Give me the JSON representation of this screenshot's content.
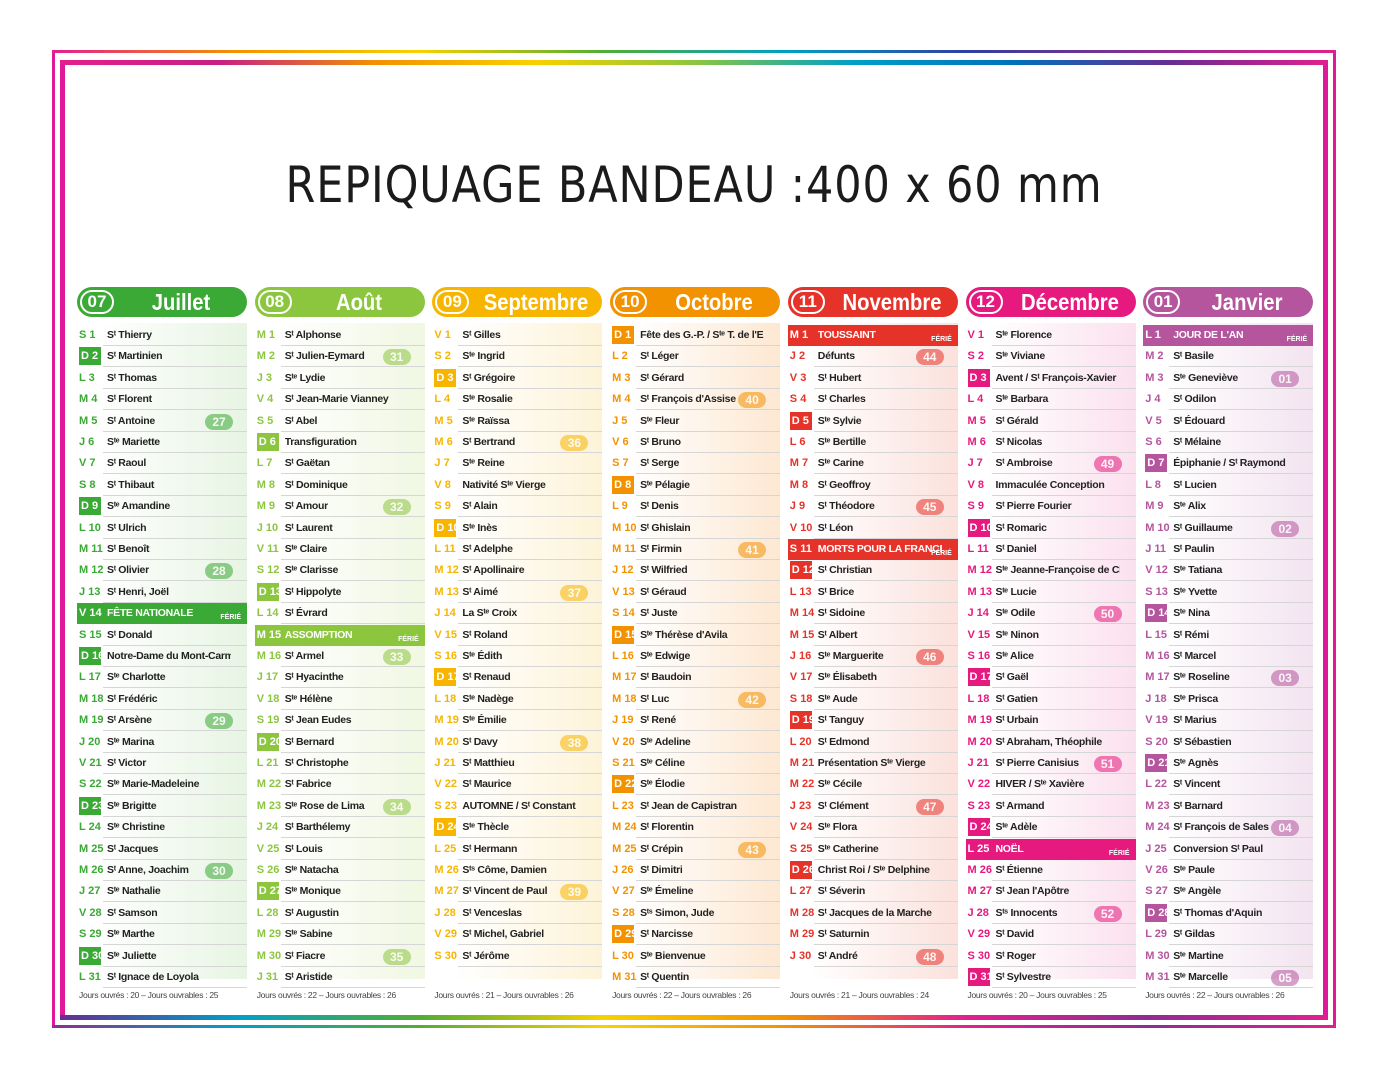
{
  "banner": "REPIQUAGE BANDEAU :400 x 60 mm",
  "holiday_tag": "FÉRIÉ",
  "months": [
    {
      "num": "07",
      "name": "Juillet",
      "color": "#3aa935",
      "bg": "#e7f4e3",
      "footer": "Jours ouvrés : 20 – Jours ouvrables : 25",
      "days": [
        [
          "S",
          "1",
          "Sᵗ Thierry"
        ],
        [
          "D",
          "2",
          "Sᵗ Martinien"
        ],
        [
          "L",
          "3",
          "Sᵗ Thomas"
        ],
        [
          "M",
          "4",
          "Sᵗ Florent"
        ],
        [
          "M",
          "5",
          "Sᵗ Antoine"
        ],
        [
          "J",
          "6",
          "Sᵗᵉ Mariette"
        ],
        [
          "V",
          "7",
          "Sᵗ Raoul"
        ],
        [
          "S",
          "8",
          "Sᵗ Thibaut"
        ],
        [
          "D",
          "9",
          "Sᵗᵉ Amandine"
        ],
        [
          "L",
          "10",
          "Sᵗ Ulrich"
        ],
        [
          "M",
          "11",
          "Sᵗ Benoît"
        ],
        [
          "M",
          "12",
          "Sᵗ Olivier"
        ],
        [
          "J",
          "13",
          "Sᵗ Henri, Joël"
        ],
        [
          "V",
          "14",
          "FÊTE NATIONALE"
        ],
        [
          "S",
          "15",
          "Sᵗ Donald"
        ],
        [
          "D",
          "16",
          "Notre-Dame du Mont-Carmel"
        ],
        [
          "L",
          "17",
          "Sᵗᵉ Charlotte"
        ],
        [
          "M",
          "18",
          "Sᵗ Frédéric"
        ],
        [
          "M",
          "19",
          "Sᵗ Arsène"
        ],
        [
          "J",
          "20",
          "Sᵗᵉ Marina"
        ],
        [
          "V",
          "21",
          "Sᵗ Victor"
        ],
        [
          "S",
          "22",
          "Sᵗᵉ Marie-Madeleine"
        ],
        [
          "D",
          "23",
          "Sᵗᵉ Brigitte"
        ],
        [
          "L",
          "24",
          "Sᵗᵉ Christine"
        ],
        [
          "M",
          "25",
          "Sᵗ Jacques"
        ],
        [
          "M",
          "26",
          "Sᵗ Anne, Joachim"
        ],
        [
          "J",
          "27",
          "Sᵗᵉ Nathalie"
        ],
        [
          "V",
          "28",
          "Sᵗ Samson"
        ],
        [
          "S",
          "29",
          "Sᵗᵉ Marthe"
        ],
        [
          "D",
          "30",
          "Sᵗᵉ Juliette"
        ],
        [
          "L",
          "31",
          "Sᵗ Ignace de Loyola"
        ]
      ],
      "weeks": [
        [
          "27",
          5
        ],
        [
          "28",
          12
        ],
        [
          "29",
          19
        ],
        [
          "30",
          26
        ]
      ],
      "holidays": [
        14
      ]
    },
    {
      "num": "08",
      "name": "Août",
      "color": "#8cc63f",
      "bg": "#f0f7e2",
      "footer": "Jours ouvrés : 22 – Jours ouvrables : 26",
      "days": [
        [
          "M",
          "1",
          "Sᵗ Alphonse"
        ],
        [
          "M",
          "2",
          "Sᵗ Julien-Eymard"
        ],
        [
          "J",
          "3",
          "Sᵗᵉ Lydie"
        ],
        [
          "V",
          "4",
          "Sᵗ Jean-Marie Vianney"
        ],
        [
          "S",
          "5",
          "Sᵗ Abel"
        ],
        [
          "D",
          "6",
          "Transfiguration"
        ],
        [
          "L",
          "7",
          "Sᵗ Gaëtan"
        ],
        [
          "M",
          "8",
          "Sᵗ Dominique"
        ],
        [
          "M",
          "9",
          "Sᵗ Amour"
        ],
        [
          "J",
          "10",
          "Sᵗ Laurent"
        ],
        [
          "V",
          "11",
          "Sᵗᵉ Claire"
        ],
        [
          "S",
          "12",
          "Sᵗᵉ Clarisse"
        ],
        [
          "D",
          "13",
          "Sᵗ Hippolyte"
        ],
        [
          "L",
          "14",
          "Sᵗ Évrard"
        ],
        [
          "M",
          "15",
          "ASSOMPTION"
        ],
        [
          "M",
          "16",
          "Sᵗ Armel"
        ],
        [
          "J",
          "17",
          "Sᵗ Hyacinthe"
        ],
        [
          "V",
          "18",
          "Sᵗᵉ Hélène"
        ],
        [
          "S",
          "19",
          "Sᵗ Jean Eudes"
        ],
        [
          "D",
          "20",
          "Sᵗ Bernard"
        ],
        [
          "L",
          "21",
          "Sᵗ Christophe"
        ],
        [
          "M",
          "22",
          "Sᵗ Fabrice"
        ],
        [
          "M",
          "23",
          "Sᵗᵉ Rose de Lima"
        ],
        [
          "J",
          "24",
          "Sᵗ Barthélemy"
        ],
        [
          "V",
          "25",
          "Sᵗ Louis"
        ],
        [
          "S",
          "26",
          "Sᵗᵉ Natacha"
        ],
        [
          "D",
          "27",
          "Sᵗᵉ Monique"
        ],
        [
          "L",
          "28",
          "Sᵗ Augustin"
        ],
        [
          "M",
          "29",
          "Sᵗᵉ Sabine"
        ],
        [
          "M",
          "30",
          "Sᵗ Fiacre"
        ],
        [
          "J",
          "31",
          "Sᵗ Aristide"
        ]
      ],
      "weeks": [
        [
          "31",
          2
        ],
        [
          "32",
          9
        ],
        [
          "33",
          16
        ],
        [
          "34",
          23
        ],
        [
          "35",
          30
        ]
      ],
      "holidays": [
        15
      ]
    },
    {
      "num": "09",
      "name": "Septembre",
      "color": "#f7b500",
      "bg": "#fdf3d8",
      "footer": "Jours ouvrés : 21 – Jours ouvrables : 26",
      "days": [
        [
          "V",
          "1",
          "Sᵗ Gilles"
        ],
        [
          "S",
          "2",
          "Sᵗᵉ Ingrid"
        ],
        [
          "D",
          "3",
          "Sᵗ Grégoire"
        ],
        [
          "L",
          "4",
          "Sᵗᵉ Rosalie"
        ],
        [
          "M",
          "5",
          "Sᵗᵉ Raïssa"
        ],
        [
          "M",
          "6",
          "Sᵗ Bertrand"
        ],
        [
          "J",
          "7",
          "Sᵗᵉ Reine"
        ],
        [
          "V",
          "8",
          "Nativité Sᵗᵉ Vierge"
        ],
        [
          "S",
          "9",
          "Sᵗ Alain"
        ],
        [
          "D",
          "10",
          "Sᵗᵉ Inès"
        ],
        [
          "L",
          "11",
          "Sᵗ Adelphe"
        ],
        [
          "M",
          "12",
          "Sᵗ Apollinaire"
        ],
        [
          "M",
          "13",
          "Sᵗ Aimé"
        ],
        [
          "J",
          "14",
          "La Sᵗᵉ Croix"
        ],
        [
          "V",
          "15",
          "Sᵗ Roland"
        ],
        [
          "S",
          "16",
          "Sᵗᵉ Édith"
        ],
        [
          "D",
          "17",
          "Sᵗ Renaud"
        ],
        [
          "L",
          "18",
          "Sᵗᵉ Nadège"
        ],
        [
          "M",
          "19",
          "Sᵗᵉ Émilie"
        ],
        [
          "M",
          "20",
          "Sᵗ Davy"
        ],
        [
          "J",
          "21",
          "Sᵗ Matthieu"
        ],
        [
          "V",
          "22",
          "Sᵗ Maurice"
        ],
        [
          "S",
          "23",
          "AUTOMNE / Sᵗ Constant"
        ],
        [
          "D",
          "24",
          "Sᵗᵉ Thècle"
        ],
        [
          "L",
          "25",
          "Sᵗ Hermann"
        ],
        [
          "M",
          "26",
          "Sᵗˢ Côme, Damien"
        ],
        [
          "M",
          "27",
          "Sᵗ Vincent de Paul"
        ],
        [
          "J",
          "28",
          "Sᵗ Venceslas"
        ],
        [
          "V",
          "29",
          "Sᵗ Michel, Gabriel"
        ],
        [
          "S",
          "30",
          "Sᵗ Jérôme"
        ]
      ],
      "weeks": [
        [
          "36",
          6
        ],
        [
          "37",
          13
        ],
        [
          "38",
          20
        ],
        [
          "39",
          27
        ]
      ],
      "holidays": []
    },
    {
      "num": "10",
      "name": "Octobre",
      "color": "#f39200",
      "bg": "#fde8d2",
      "footer": "Jours ouvrés : 22 – Jours ouvrables : 26",
      "days": [
        [
          "D",
          "1",
          "Fête des G.-P. / Sᵗᵉ T. de l'E.-Jésus"
        ],
        [
          "L",
          "2",
          "Sᵗ Léger"
        ],
        [
          "M",
          "3",
          "Sᵗ Gérard"
        ],
        [
          "M",
          "4",
          "Sᵗ François d'Assise"
        ],
        [
          "J",
          "5",
          "Sᵗᵉ Fleur"
        ],
        [
          "V",
          "6",
          "Sᵗ Bruno"
        ],
        [
          "S",
          "7",
          "Sᵗ Serge"
        ],
        [
          "D",
          "8",
          "Sᵗᵉ Pélagie"
        ],
        [
          "L",
          "9",
          "Sᵗ Denis"
        ],
        [
          "M",
          "10",
          "Sᵗ Ghislain"
        ],
        [
          "M",
          "11",
          "Sᵗ Firmin"
        ],
        [
          "J",
          "12",
          "Sᵗ Wilfried"
        ],
        [
          "V",
          "13",
          "Sᵗ Géraud"
        ],
        [
          "S",
          "14",
          "Sᵗ Juste"
        ],
        [
          "D",
          "15",
          "Sᵗᵉ Thérèse d'Avila"
        ],
        [
          "L",
          "16",
          "Sᵗᵉ Edwige"
        ],
        [
          "M",
          "17",
          "Sᵗ Baudoin"
        ],
        [
          "M",
          "18",
          "Sᵗ Luc"
        ],
        [
          "J",
          "19",
          "Sᵗ René"
        ],
        [
          "V",
          "20",
          "Sᵗᵉ Adeline"
        ],
        [
          "S",
          "21",
          "Sᵗᵉ Céline"
        ],
        [
          "D",
          "22",
          "Sᵗᵉ Élodie"
        ],
        [
          "L",
          "23",
          "Sᵗ Jean de Capistran"
        ],
        [
          "M",
          "24",
          "Sᵗ Florentin"
        ],
        [
          "M",
          "25",
          "Sᵗ Crépin"
        ],
        [
          "J",
          "26",
          "Sᵗ Dimitri"
        ],
        [
          "V",
          "27",
          "Sᵗᵉ Émeline"
        ],
        [
          "S",
          "28",
          "Sᵗˢ Simon, Jude"
        ],
        [
          "D",
          "29",
          "Sᵗ Narcisse"
        ],
        [
          "L",
          "30",
          "Sᵗᵉ Bienvenue"
        ],
        [
          "M",
          "31",
          "Sᵗ Quentin"
        ]
      ],
      "weeks": [
        [
          "40",
          4
        ],
        [
          "41",
          11
        ],
        [
          "42",
          18
        ],
        [
          "43",
          25
        ]
      ],
      "holidays": []
    },
    {
      "num": "11",
      "name": "Novembre",
      "color": "#e6332a",
      "bg": "#fbe1dc",
      "footer": "Jours ouvrés : 21 – Jours ouvrables : 24",
      "days": [
        [
          "M",
          "1",
          "TOUSSAINT"
        ],
        [
          "J",
          "2",
          "Défunts"
        ],
        [
          "V",
          "3",
          "Sᵗ Hubert"
        ],
        [
          "S",
          "4",
          "Sᵗ Charles"
        ],
        [
          "D",
          "5",
          "Sᵗᵉ Sylvie"
        ],
        [
          "L",
          "6",
          "Sᵗᵉ Bertille"
        ],
        [
          "M",
          "7",
          "Sᵗᵉ Carine"
        ],
        [
          "M",
          "8",
          "Sᵗ Geoffroy"
        ],
        [
          "J",
          "9",
          "Sᵗ Théodore"
        ],
        [
          "V",
          "10",
          "Sᵗ Léon"
        ],
        [
          "S",
          "11",
          "MORTS POUR LA FRANCE"
        ],
        [
          "D",
          "12",
          "Sᵗ Christian"
        ],
        [
          "L",
          "13",
          "Sᵗ Brice"
        ],
        [
          "M",
          "14",
          "Sᵗ Sidoine"
        ],
        [
          "M",
          "15",
          "Sᵗ Albert"
        ],
        [
          "J",
          "16",
          "Sᵗᵉ Marguerite"
        ],
        [
          "V",
          "17",
          "Sᵗᵉ Élisabeth"
        ],
        [
          "S",
          "18",
          "Sᵗᵉ Aude"
        ],
        [
          "D",
          "19",
          "Sᵗ Tanguy"
        ],
        [
          "L",
          "20",
          "Sᵗ Edmond"
        ],
        [
          "M",
          "21",
          "Présentation Sᵗᵉ Vierge"
        ],
        [
          "M",
          "22",
          "Sᵗᵉ Cécile"
        ],
        [
          "J",
          "23",
          "Sᵗ Clément"
        ],
        [
          "V",
          "24",
          "Sᵗᵉ Flora"
        ],
        [
          "S",
          "25",
          "Sᵗᵉ Catherine"
        ],
        [
          "D",
          "26",
          "Christ Roi / Sᵗᵉ Delphine"
        ],
        [
          "L",
          "27",
          "Sᵗ Séverin"
        ],
        [
          "M",
          "28",
          "Sᵗ Jacques de la Marche"
        ],
        [
          "M",
          "29",
          "Sᵗ Saturnin"
        ],
        [
          "J",
          "30",
          "Sᵗ André"
        ]
      ],
      "weeks": [
        [
          "44",
          2
        ],
        [
          "45",
          9
        ],
        [
          "46",
          16
        ],
        [
          "47",
          23
        ],
        [
          "48",
          30
        ]
      ],
      "holidays": [
        1,
        11
      ]
    },
    {
      "num": "12",
      "name": "Décembre",
      "color": "#e5197e",
      "bg": "#fbe1ee",
      "footer": "Jours ouvrés : 20 – Jours ouvrables : 25",
      "days": [
        [
          "V",
          "1",
          "Sᵗᵉ Florence"
        ],
        [
          "S",
          "2",
          "Sᵗᵉ Viviane"
        ],
        [
          "D",
          "3",
          "Avent / Sᵗ François-Xavier"
        ],
        [
          "L",
          "4",
          "Sᵗᵉ Barbara"
        ],
        [
          "M",
          "5",
          "Sᵗ Gérald"
        ],
        [
          "M",
          "6",
          "Sᵗ Nicolas"
        ],
        [
          "J",
          "7",
          "Sᵗ Ambroise"
        ],
        [
          "V",
          "8",
          "Immaculée Conception"
        ],
        [
          "S",
          "9",
          "Sᵗ Pierre Fourier"
        ],
        [
          "D",
          "10",
          "Sᵗ Romaric"
        ],
        [
          "L",
          "11",
          "Sᵗ Daniel"
        ],
        [
          "M",
          "12",
          "Sᵗᵉ Jeanne-Françoise de Chantal"
        ],
        [
          "M",
          "13",
          "Sᵗᵉ Lucie"
        ],
        [
          "J",
          "14",
          "Sᵗᵉ Odile"
        ],
        [
          "V",
          "15",
          "Sᵗᵉ Ninon"
        ],
        [
          "S",
          "16",
          "Sᵗᵉ Alice"
        ],
        [
          "D",
          "17",
          "Sᵗ Gaël"
        ],
        [
          "L",
          "18",
          "Sᵗ Gatien"
        ],
        [
          "M",
          "19",
          "Sᵗ Urbain"
        ],
        [
          "M",
          "20",
          "Sᵗ Abraham, Théophile"
        ],
        [
          "J",
          "21",
          "Sᵗ Pierre Canisius"
        ],
        [
          "V",
          "22",
          "HIVER / Sᵗᵉ Xavière"
        ],
        [
          "S",
          "23",
          "Sᵗ Armand"
        ],
        [
          "D",
          "24",
          "Sᵗᵉ Adèle"
        ],
        [
          "L",
          "25",
          "NOËL"
        ],
        [
          "M",
          "26",
          "Sᵗ Étienne"
        ],
        [
          "M",
          "27",
          "Sᵗ Jean l'Apôtre"
        ],
        [
          "J",
          "28",
          "Sᵗˢ Innocents"
        ],
        [
          "V",
          "29",
          "Sᵗ David"
        ],
        [
          "S",
          "30",
          "Sᵗ Roger"
        ],
        [
          "D",
          "31",
          "Sᵗ Sylvestre"
        ]
      ],
      "weeks": [
        [
          "49",
          7
        ],
        [
          "50",
          14
        ],
        [
          "51",
          21
        ],
        [
          "52",
          28
        ]
      ],
      "holidays": [
        25
      ]
    },
    {
      "num": "01",
      "name": "Janvier",
      "color": "#b5559e",
      "bg": "#f3e4f0",
      "footer": "Jours ouvrés : 22 – Jours ouvrables : 26",
      "days": [
        [
          "L",
          "1",
          "JOUR DE L'AN"
        ],
        [
          "M",
          "2",
          "Sᵗ Basile"
        ],
        [
          "M",
          "3",
          "Sᵗᵉ Geneviève"
        ],
        [
          "J",
          "4",
          "Sᵗ Odilon"
        ],
        [
          "V",
          "5",
          "Sᵗ Édouard"
        ],
        [
          "S",
          "6",
          "Sᵗ Mélaine"
        ],
        [
          "D",
          "7",
          "Épiphanie / Sᵗ Raymond"
        ],
        [
          "L",
          "8",
          "Sᵗ Lucien"
        ],
        [
          "M",
          "9",
          "Sᵗᵉ Alix"
        ],
        [
          "M",
          "10",
          "Sᵗ Guillaume"
        ],
        [
          "J",
          "11",
          "Sᵗ Paulin"
        ],
        [
          "V",
          "12",
          "Sᵗᵉ Tatiana"
        ],
        [
          "S",
          "13",
          "Sᵗᵉ Yvette"
        ],
        [
          "D",
          "14",
          "Sᵗᵉ Nina"
        ],
        [
          "L",
          "15",
          "Sᵗ Rémi"
        ],
        [
          "M",
          "16",
          "Sᵗ Marcel"
        ],
        [
          "M",
          "17",
          "Sᵗᵉ Roseline"
        ],
        [
          "J",
          "18",
          "Sᵗᵉ Prisca"
        ],
        [
          "V",
          "19",
          "Sᵗ Marius"
        ],
        [
          "S",
          "20",
          "Sᵗ Sébastien"
        ],
        [
          "D",
          "21",
          "Sᵗᵉ Agnès"
        ],
        [
          "L",
          "22",
          "Sᵗ Vincent"
        ],
        [
          "M",
          "23",
          "Sᵗ Barnard"
        ],
        [
          "M",
          "24",
          "Sᵗ François de Sales"
        ],
        [
          "J",
          "25",
          "Conversion Sᵗ Paul"
        ],
        [
          "V",
          "26",
          "Sᵗᵉ Paule"
        ],
        [
          "S",
          "27",
          "Sᵗᵉ Angèle"
        ],
        [
          "D",
          "28",
          "Sᵗ Thomas d'Aquin"
        ],
        [
          "L",
          "29",
          "Sᵗ Gildas"
        ],
        [
          "M",
          "30",
          "Sᵗᵉ Martine"
        ],
        [
          "M",
          "31",
          "Sᵗᵉ Marcelle"
        ]
      ],
      "weeks": [
        [
          "01",
          3
        ],
        [
          "02",
          10
        ],
        [
          "03",
          17
        ],
        [
          "04",
          24
        ],
        [
          "05",
          31
        ]
      ],
      "holidays": [
        1
      ]
    }
  ]
}
